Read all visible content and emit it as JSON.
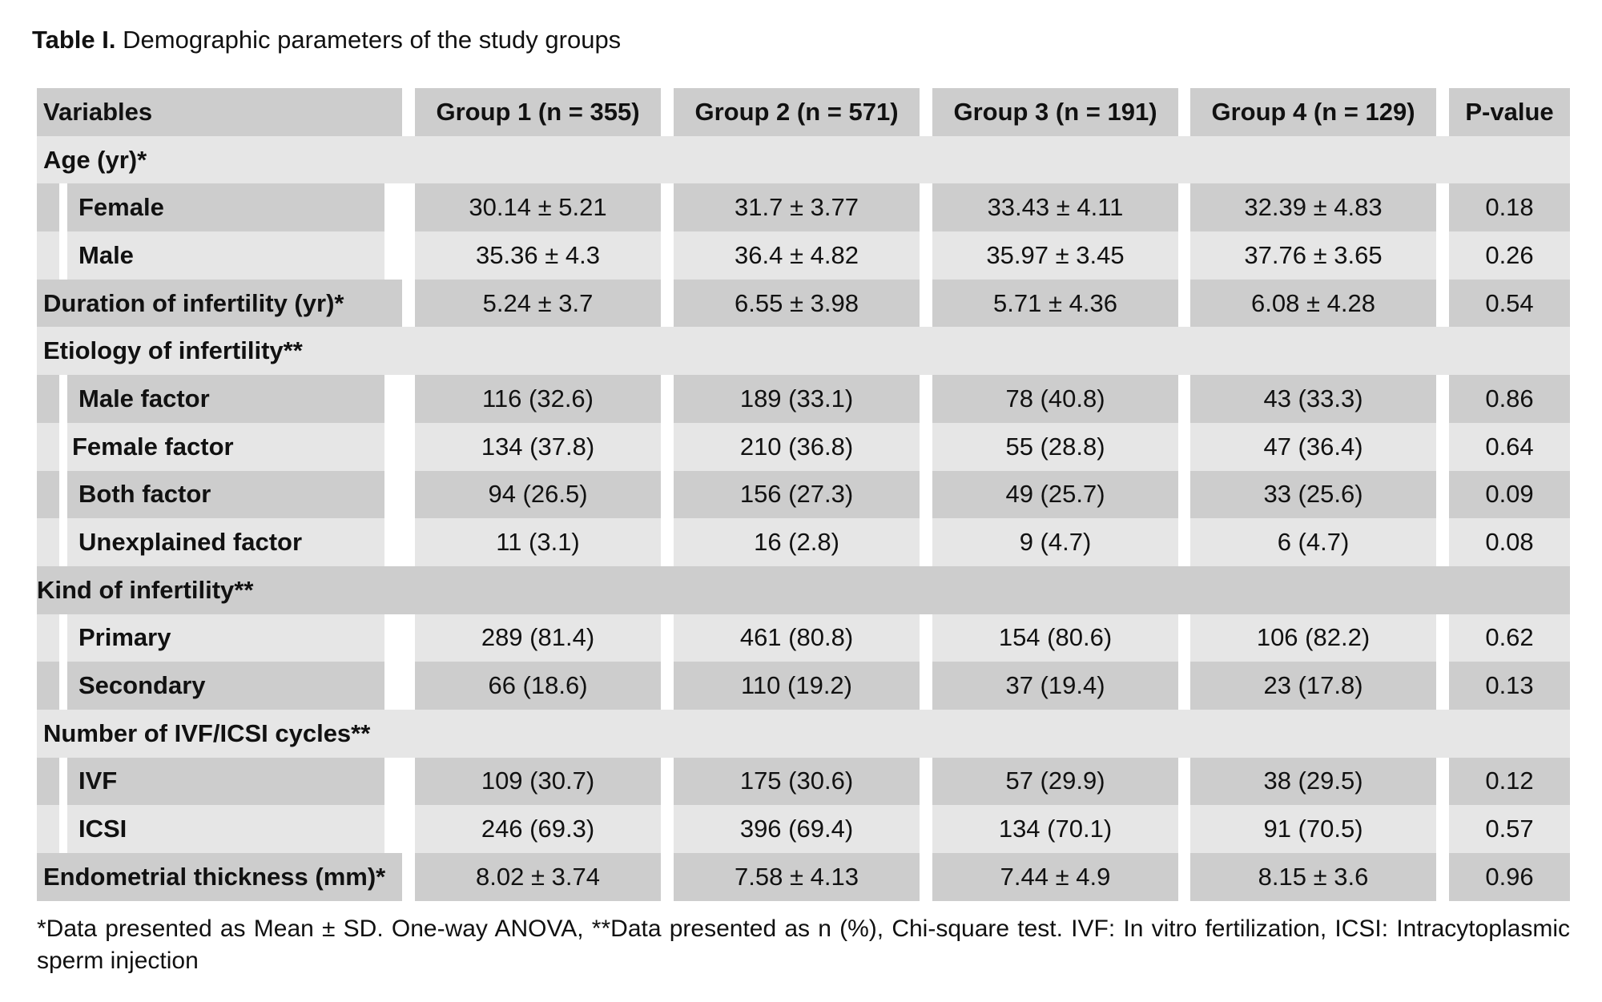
{
  "caption": {
    "label": "Table I.",
    "text": "Demographic parameters of the study groups"
  },
  "header": [
    "Variables",
    "Group 1 (n = 355)",
    "Group 2 (n = 571)",
    "Group 3 (n = 191)",
    "Group 4 (n = 129)",
    "P-value"
  ],
  "sections": {
    "age": "Age (yr)*",
    "etiology": "Etiology of infertility**",
    "kind": "Kind of infertility**",
    "cycles": "Number of IVF/ICSI cycles**"
  },
  "rows": {
    "female": [
      "Female",
      "30.14 ± 5.21",
      "31.7 ± 3.77",
      "33.43 ± 4.11",
      "32.39 ± 4.83",
      "0.18"
    ],
    "male": [
      "Male",
      "35.36 ± 4.3",
      "36.4 ± 4.82",
      "35.97 ± 3.45",
      "37.76 ± 3.65",
      "0.26"
    ],
    "duration": [
      "Duration of infertility (yr)*",
      "5.24 ± 3.7",
      "6.55 ± 3.98",
      "5.71 ± 4.36",
      "6.08 ± 4.28",
      "0.54"
    ],
    "male_factor": [
      "Male factor",
      "116 (32.6)",
      "189 (33.1)",
      "78 (40.8)",
      "43 (33.3)",
      "0.86"
    ],
    "female_factor": [
      "Female factor",
      "134 (37.8)",
      "210 (36.8)",
      "55 (28.8)",
      "47 (36.4)",
      "0.64"
    ],
    "both_factor": [
      "Both factor",
      "94 (26.5)",
      "156 (27.3)",
      "49 (25.7)",
      "33 (25.6)",
      "0.09"
    ],
    "unexplained": [
      "Unexplained factor",
      "11 (3.1)",
      "16 (2.8)",
      "9 (4.7)",
      "6 (4.7)",
      "0.08"
    ],
    "primary": [
      "Primary",
      "289 (81.4)",
      "461 (80.8)",
      "154 (80.6)",
      "106 (82.2)",
      "0.62"
    ],
    "secondary": [
      "Secondary",
      "66 (18.6)",
      "110 (19.2)",
      "37 (19.4)",
      "23 (17.8)",
      "0.13"
    ],
    "ivf": [
      "IVF",
      "109 (30.7)",
      "175 (30.6)",
      "57 (29.9)",
      "38 (29.5)",
      "0.12"
    ],
    "icsi": [
      "ICSI",
      "246 (69.3)",
      "396 (69.4)",
      "134 (70.1)",
      "91 (70.5)",
      "0.57"
    ],
    "endometrial": [
      "Endometrial thickness (mm)*",
      "8.02 ± 3.74",
      "7.58 ± 4.13",
      "7.44 ± 4.9",
      "8.15 ± 3.6",
      "0.96"
    ]
  },
  "footnote": "*Data presented as Mean ± SD. One-way ANOVA, **Data presented as n (%), Chi-square test. IVF: In vitro fertilization, ICSI: Intracytoplasmic sperm injection"
}
